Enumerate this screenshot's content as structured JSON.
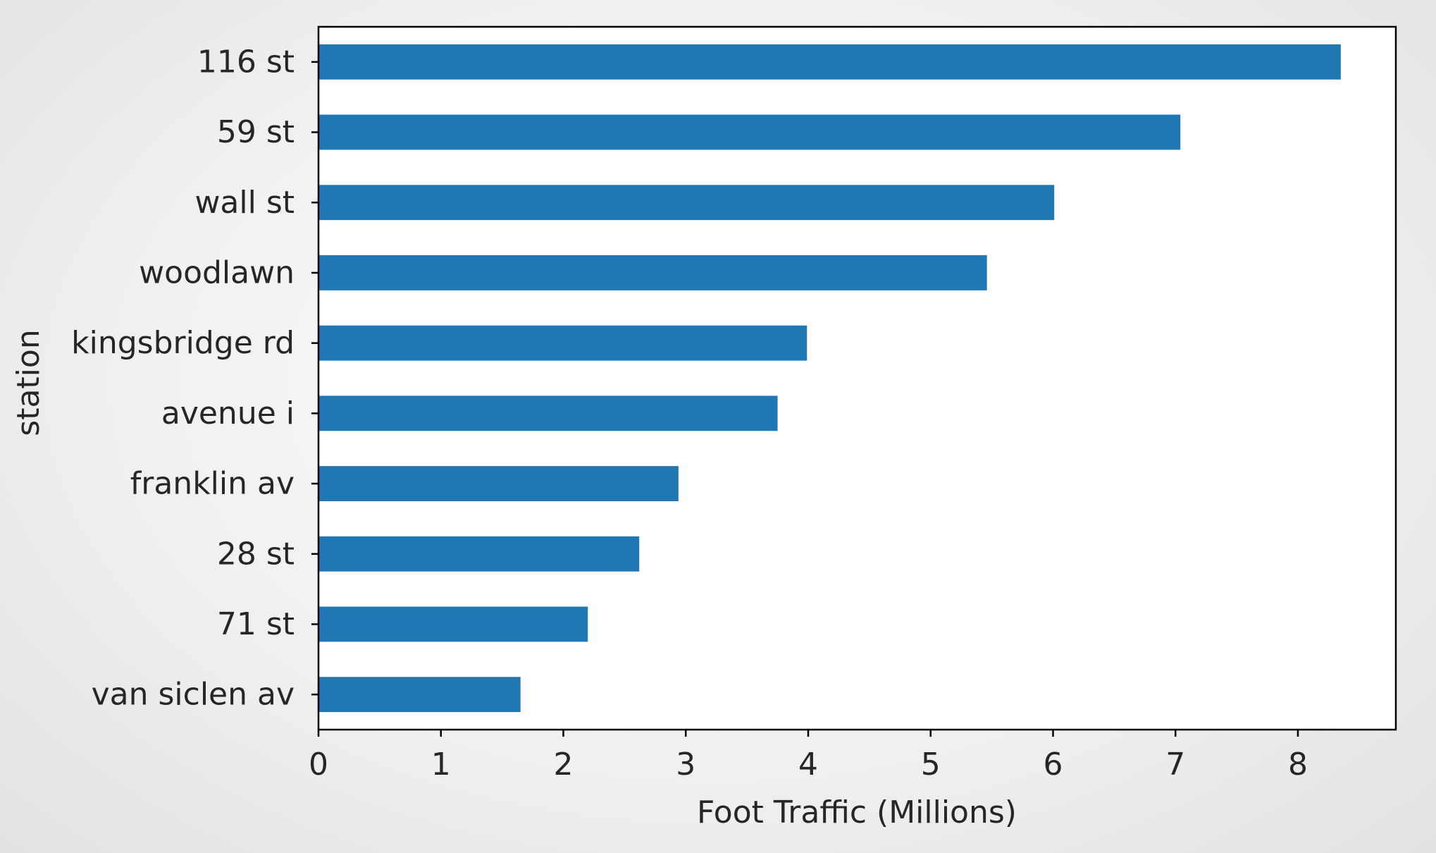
{
  "chart_data": {
    "type": "bar",
    "orientation": "horizontal",
    "categories": [
      "116 st",
      "59 st",
      "wall st",
      "woodlawn",
      "kingsbridge rd",
      "avenue i",
      "franklin av",
      "28 st",
      "71 st",
      "van siclen av"
    ],
    "values": [
      8.35,
      7.04,
      6.01,
      5.46,
      3.99,
      3.75,
      2.94,
      2.62,
      2.2,
      1.65
    ],
    "xlabel": "Foot Traffic (Millions)",
    "ylabel": "station",
    "xlim": [
      0,
      8.8
    ],
    "xticks": [
      0,
      1,
      2,
      3,
      4,
      5,
      6,
      7,
      8
    ],
    "grid": false,
    "bar_color": "#1f77b4"
  }
}
